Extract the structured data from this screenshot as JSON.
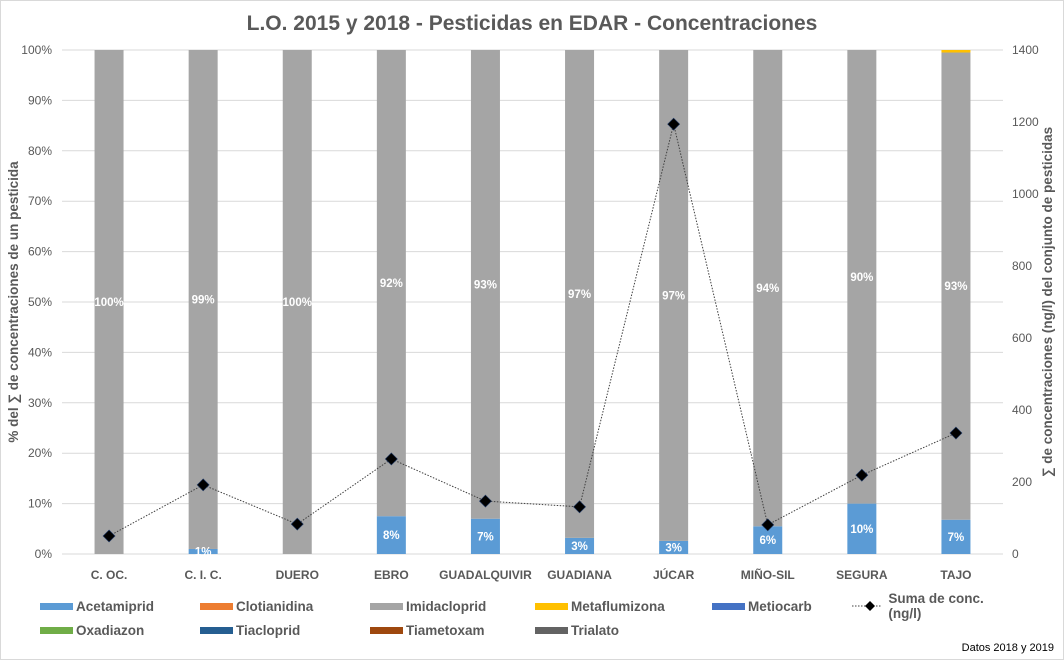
{
  "chart_data": {
    "type": "bar",
    "stacked": "percent",
    "title": "L.O. 2015 y 2018 - Pesticidas en EDAR - Concentraciones",
    "xlabel": "",
    "ylabel": "% del ∑ de concentraciones de un pesticida",
    "y2label": "∑ de concentraciones (ng/l) del conjunto de pesticidas",
    "ylim": [
      0,
      100
    ],
    "y2lim": [
      0,
      1400
    ],
    "yticks": [
      "0%",
      "10%",
      "20%",
      "30%",
      "40%",
      "50%",
      "60%",
      "70%",
      "80%",
      "90%",
      "100%"
    ],
    "y2ticks": [
      "0",
      "200",
      "400",
      "600",
      "800",
      "1000",
      "1200",
      "1400"
    ],
    "grid": true,
    "legend_position": "bottom",
    "categories": [
      "C. OC.",
      "C. I. C.",
      "DUERO",
      "EBRO",
      "GUADALQUIVIR",
      "GUADIANA",
      "JÚCAR",
      "MIÑO-SIL",
      "SEGURA",
      "TAJO"
    ],
    "series": [
      {
        "name": "Acetamiprid",
        "color": "#5b9bd5",
        "values": [
          0,
          1,
          0,
          7.5,
          7,
          3.2,
          2.6,
          5.5,
          10,
          6.8
        ],
        "labels": [
          "",
          "1%",
          "",
          "8%",
          "7%",
          "3%",
          "3%",
          "6%",
          "10%",
          "7%"
        ]
      },
      {
        "name": "Clotianidina",
        "color": "#ed7d31",
        "values": [
          0,
          0,
          0,
          0,
          0,
          0,
          0,
          0,
          0,
          0
        ],
        "labels": []
      },
      {
        "name": "Imidacloprid",
        "color": "#a5a5a5",
        "values": [
          100,
          99,
          100,
          92.5,
          93,
          96.8,
          97.4,
          94.5,
          90,
          92.7
        ],
        "labels": [
          "100%",
          "99%",
          "100%",
          "92%",
          "93%",
          "97%",
          "97%",
          "94%",
          "90%",
          "93%"
        ]
      },
      {
        "name": "Metaflumizona",
        "color": "#ffc000",
        "values": [
          0,
          0,
          0,
          0,
          0,
          0,
          0,
          0,
          0,
          0.5
        ],
        "labels": []
      },
      {
        "name": "Metiocarb",
        "color": "#4472c4",
        "values": [
          0,
          0,
          0,
          0,
          0,
          0,
          0,
          0,
          0,
          0
        ],
        "labels": []
      },
      {
        "name": "Oxadiazon",
        "color": "#70ad47",
        "values": [
          0,
          0,
          0,
          0,
          0,
          0,
          0,
          0,
          0,
          0
        ],
        "labels": []
      },
      {
        "name": "Tiacloprid",
        "color": "#255e91",
        "values": [
          0,
          0,
          0,
          0,
          0,
          0,
          0,
          0,
          0,
          0
        ],
        "labels": []
      },
      {
        "name": "Tiametoxam",
        "color": "#9e480e",
        "values": [
          0,
          0,
          0,
          0,
          0,
          0,
          0,
          0,
          0,
          0
        ],
        "labels": []
      },
      {
        "name": "Trialato",
        "color": "#636363",
        "values": [
          0,
          0,
          0,
          0,
          0,
          0,
          0,
          0,
          0,
          0
        ],
        "labels": []
      }
    ],
    "line_series": {
      "name": "Suma de conc. (ng/l)",
      "axis": "secondary",
      "color": "#000000",
      "values": [
        50,
        192,
        83,
        264,
        147,
        131,
        1194,
        81,
        219,
        336
      ]
    },
    "footnote": "Datos 2018 y 2019"
  },
  "legend": {
    "items": [
      {
        "label": "Acetamiprid",
        "color": "#5b9bd5",
        "kind": "box"
      },
      {
        "label": "Clotianidina",
        "color": "#ed7d31",
        "kind": "box"
      },
      {
        "label": "Imidacloprid",
        "color": "#a5a5a5",
        "kind": "box"
      },
      {
        "label": "Metaflumizona",
        "color": "#ffc000",
        "kind": "box"
      },
      {
        "label": "Metiocarb",
        "color": "#4472c4",
        "kind": "box"
      },
      {
        "label": "Suma de conc. (ng/l)",
        "color": "#000000",
        "kind": "line"
      },
      {
        "label": "Oxadiazon",
        "color": "#70ad47",
        "kind": "box"
      },
      {
        "label": "Tiacloprid",
        "color": "#255e91",
        "kind": "box"
      },
      {
        "label": "Tiametoxam",
        "color": "#9e480e",
        "kind": "box"
      },
      {
        "label": "Trialato",
        "color": "#636363",
        "kind": "box"
      }
    ]
  }
}
